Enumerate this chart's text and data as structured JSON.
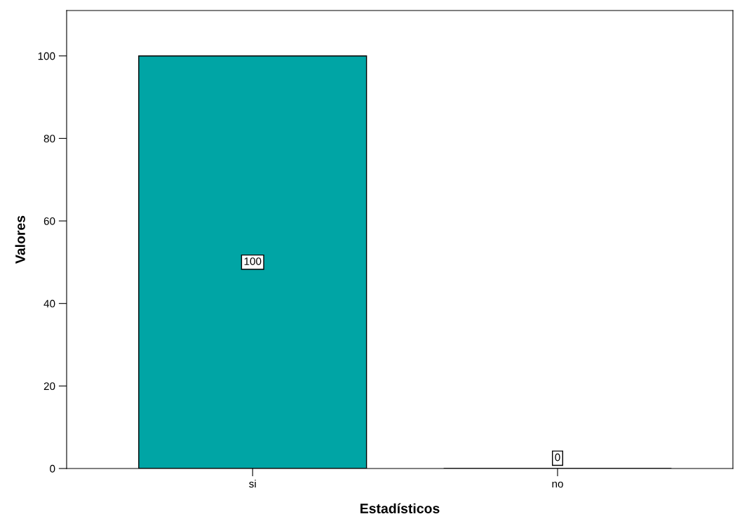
{
  "chart_data": {
    "type": "bar",
    "xlabel": "Estadísticos",
    "ylabel": "Valores",
    "categories": [
      "si",
      "no"
    ],
    "values": [
      100,
      0
    ],
    "color": "#00a5a5",
    "ylim": [
      0,
      111
    ],
    "yticks": [
      0,
      20,
      40,
      60,
      80,
      100
    ],
    "data_labels": true,
    "grid": false,
    "legend": false
  }
}
